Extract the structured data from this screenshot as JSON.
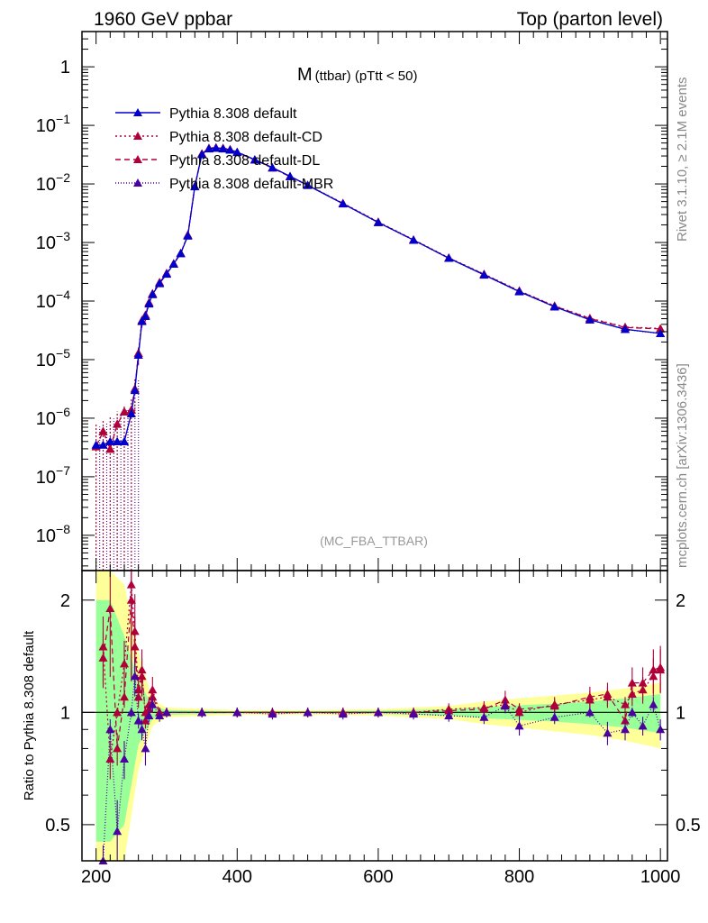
{
  "header": {
    "left": "1960 GeV ppbar",
    "right": "Top (parton level)"
  },
  "side_labels": {
    "rivet": "Rivet 3.1.10, ≥ 2.1M events",
    "source": "mcplots.cern.ch [arXiv:1306.3436]"
  },
  "chart_data": [
    {
      "type": "line",
      "panel": "main",
      "title_main": "M",
      "title_sub": "(ttbar) (pTtt < 50)",
      "watermark": "(MC_FBA_TTBAR)",
      "xlim": [
        180,
        1010
      ],
      "ylim": [
        2.5e-09,
        4.0
      ],
      "yscale": "log",
      "yticks": [
        {
          "v": 1,
          "label": "1"
        },
        {
          "v": 0.1,
          "label": "10",
          "exp": "−1"
        },
        {
          "v": 0.01,
          "label": "10",
          "exp": "−2"
        },
        {
          "v": 0.001,
          "label": "10",
          "exp": "−3"
        },
        {
          "v": 0.0001,
          "label": "10",
          "exp": "−4"
        },
        {
          "v": 1e-05,
          "label": "10",
          "exp": "−5"
        },
        {
          "v": 1e-06,
          "label": "10",
          "exp": "−6"
        },
        {
          "v": 1e-07,
          "label": "10",
          "exp": "−7"
        },
        {
          "v": 1e-08,
          "label": "10",
          "exp": "−8"
        }
      ],
      "legend_position": "top-left",
      "series": [
        {
          "name": "Pythia 8.308 default",
          "color": "#0000cc",
          "dash": "solid"
        },
        {
          "name": "Pythia 8.308 default-CD",
          "color": "#b0003a",
          "dash": "dotted"
        },
        {
          "name": "Pythia 8.308 default-DL",
          "color": "#b0003a",
          "dash": "dashed"
        },
        {
          "name": "Pythia 8.308 default-MBR",
          "color": "#4b00a0",
          "dash": "densedot"
        }
      ],
      "x": [
        200,
        210,
        220,
        230,
        240,
        250,
        255,
        260,
        265,
        270,
        275,
        280,
        290,
        300,
        310,
        320,
        330,
        340,
        350,
        360,
        370,
        380,
        390,
        400,
        425,
        450,
        475,
        500,
        550,
        600,
        650,
        700,
        750,
        800,
        850,
        900,
        950,
        1000
      ],
      "y_default": [
        3.5e-07,
        3.5e-07,
        4e-07,
        4e-07,
        4e-07,
        1.2e-06,
        3e-06,
        1.2e-05,
        4.5e-05,
        5.5e-05,
        9e-05,
        0.00013,
        0.0002,
        0.00029,
        0.00043,
        0.00065,
        0.0013,
        0.009,
        0.032,
        0.04,
        0.041,
        0.04,
        0.038,
        0.035,
        0.026,
        0.019,
        0.0135,
        0.0095,
        0.0046,
        0.0022,
        0.0011,
        0.00054,
        0.00028,
        0.000145,
        8e-05,
        4.8e-05,
        3.3e-05,
        2.8e-05
      ],
      "y_cd": [
        3.3e-07,
        6e-07,
        3e-07,
        8e-07,
        1.3e-06,
        1.4e-06,
        3.2e-06,
        1.3e-05,
        4.7e-05,
        5.8e-05,
        9.5e-05,
        0.000135,
        0.00021,
        0.0003,
        0.00044,
        0.00066,
        0.00135,
        0.0092,
        0.033,
        0.041,
        0.042,
        0.041,
        0.039,
        0.035,
        0.026,
        0.019,
        0.0135,
        0.0096,
        0.0047,
        0.00225,
        0.00112,
        0.00055,
        0.00029,
        0.00015,
        8.3e-05,
        5.1e-05,
        3.6e-05,
        3.4e-05
      ],
      "y_err_low": [
        1e-09,
        1e-09,
        1e-09,
        1e-09,
        1e-09,
        1e-09,
        1.2e-06,
        8e-06,
        3.5e-05,
        4.5e-05,
        8e-05,
        0.00012,
        0.00019,
        0.00028,
        0.00041,
        0.00062,
        0.00125,
        0.0087,
        0.031,
        0.039,
        0.04,
        0.039,
        0.037,
        0.034,
        0.0255,
        0.0185,
        0.0132,
        0.0093,
        0.0045,
        0.00215,
        0.00107,
        0.00052,
        0.00027,
        0.00014,
        7.6e-05,
        4.5e-05,
        3e-05,
        2.5e-05
      ],
      "y_err_high": [
        8e-07,
        9e-07,
        1.1e-06,
        1.3e-06,
        1.6e-06,
        2.2e-06,
        5e-06,
        1.6e-05,
        5.5e-05,
        6.5e-05,
        0.0001,
        0.00014,
        0.00022,
        0.00031,
        0.00046,
        0.00069,
        0.0014,
        0.0094,
        0.034,
        0.042,
        0.043,
        0.042,
        0.04,
        0.036,
        0.027,
        0.0195,
        0.0138,
        0.0098,
        0.0048,
        0.0023,
        0.00115,
        0.00057,
        0.0003,
        0.000155,
        8.8e-05,
        5.5e-05,
        4e-05,
        3.8e-05
      ]
    },
    {
      "type": "line",
      "panel": "ratio",
      "ylabel": "Ratio to Pythia 8.308 default",
      "xlim": [
        180,
        1010
      ],
      "ylim": [
        0.4,
        2.4
      ],
      "yscale": "log",
      "yticks": [
        {
          "v": 2,
          "label": "2"
        },
        {
          "v": 1,
          "label": "1"
        },
        {
          "v": 0.5,
          "label": "0.5"
        }
      ],
      "xticks": [
        200,
        400,
        600,
        800,
        1000
      ],
      "reference": 1,
      "band_yellow": {
        "x": [
          200,
          220,
          240,
          260,
          280,
          300,
          400,
          500,
          600,
          700,
          750,
          800,
          850,
          900,
          950,
          1000
        ],
        "lo": [
          0.3,
          0.3,
          0.35,
          0.7,
          0.92,
          0.97,
          0.985,
          0.985,
          0.98,
          0.96,
          0.93,
          0.91,
          0.89,
          0.87,
          0.84,
          0.8
        ],
        "hi": [
          2.4,
          2.4,
          2.2,
          1.45,
          1.08,
          1.03,
          1.015,
          1.015,
          1.02,
          1.04,
          1.07,
          1.09,
          1.11,
          1.13,
          1.16,
          1.2
        ]
      },
      "band_green": {
        "x": [
          200,
          220,
          240,
          260,
          280,
          300,
          400,
          500,
          600,
          700,
          750,
          800,
          850,
          900,
          950,
          1000
        ],
        "lo": [
          0.45,
          0.45,
          0.5,
          0.82,
          0.96,
          0.985,
          0.993,
          0.993,
          0.99,
          0.98,
          0.965,
          0.955,
          0.945,
          0.93,
          0.91,
          0.88
        ],
        "hi": [
          2.0,
          2.0,
          1.6,
          1.22,
          1.04,
          1.015,
          1.007,
          1.007,
          1.01,
          1.02,
          1.035,
          1.045,
          1.055,
          1.07,
          1.09,
          1.12
        ]
      },
      "x": [
        210,
        220,
        230,
        240,
        250,
        255,
        260,
        265,
        270,
        275,
        280,
        290,
        300,
        350,
        400,
        450,
        500,
        550,
        600,
        650,
        700,
        750,
        780,
        800,
        850,
        900,
        925,
        950,
        960,
        975,
        990,
        1000
      ],
      "series_ratio": [
        {
          "name": "Pythia 8.308 default-CD",
          "color": "#b0003a",
          "dash": "dotted",
          "values": [
            1.5,
            0.75,
            1.0,
            1.35,
            2.2,
            1.65,
            1.15,
            1.3,
            0.95,
            1.05,
            1.15,
            1.0,
            1.0,
            1.0,
            1.0,
            1.0,
            1.0,
            1.0,
            1.0,
            1.0,
            1.02,
            1.03,
            1.05,
            1.0,
            1.05,
            1.08,
            1.1,
            1.05,
            1.12,
            1.15,
            1.25,
            1.3
          ]
        },
        {
          "name": "Pythia 8.308 default-DL",
          "color": "#b0003a",
          "dash": "dashed",
          "values": [
            1.4,
            1.9,
            0.8,
            1.1,
            2.0,
            1.5,
            1.1,
            1.25,
            1.0,
            1.02,
            1.1,
            1.0,
            1.0,
            1.0,
            1.0,
            1.0,
            1.0,
            1.0,
            1.0,
            1.0,
            1.01,
            1.02,
            1.08,
            1.02,
            1.04,
            1.1,
            1.12,
            0.95,
            1.2,
            1.2,
            1.3,
            1.32
          ]
        },
        {
          "name": "Pythia 8.308 default-MBR",
          "color": "#4b00a0",
          "dash": "densedot",
          "values": [
            0.35,
            0.9,
            0.48,
            0.75,
            1.0,
            1.25,
            0.95,
            0.9,
            0.8,
            0.98,
            1.05,
            0.98,
            1.0,
            1.0,
            1.0,
            0.99,
            1.0,
            0.99,
            1.0,
            0.99,
            0.98,
            0.97,
            1.04,
            0.92,
            0.97,
            1.0,
            0.88,
            0.9,
            1.0,
            0.92,
            1.05,
            0.9
          ]
        }
      ]
    }
  ]
}
